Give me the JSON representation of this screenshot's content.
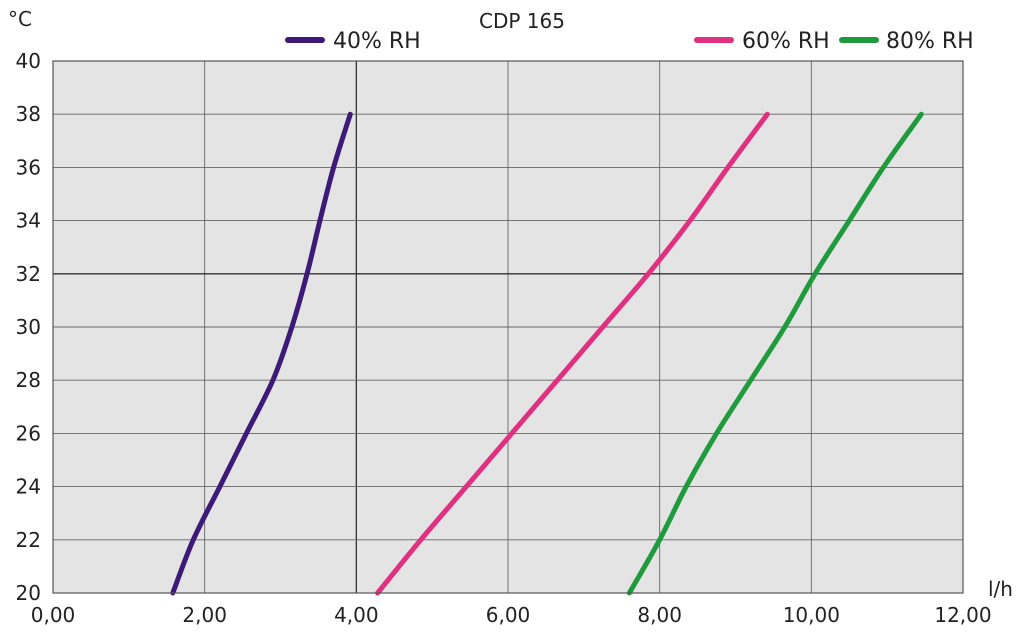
{
  "chart_data": {
    "type": "line",
    "title": "CDP 165",
    "xlabel": "l/h",
    "ylabel": "°C",
    "xlim": [
      0,
      12
    ],
    "ylim": [
      20,
      40
    ],
    "x_ticks": [
      "0,00",
      "2,00",
      "4,00",
      "6,00",
      "8,00",
      "10,00",
      "12,00"
    ],
    "y_ticks": [
      "20",
      "22",
      "24",
      "26",
      "28",
      "30",
      "32",
      "34",
      "36",
      "38",
      "40"
    ],
    "grid": true,
    "legend": "top",
    "series": [
      {
        "name": "40% RH",
        "color": "#3d1a78",
        "points": [
          [
            1.58,
            20
          ],
          [
            1.85,
            22
          ],
          [
            2.2,
            24
          ],
          [
            2.55,
            26
          ],
          [
            2.9,
            28
          ],
          [
            3.15,
            30
          ],
          [
            3.35,
            32
          ],
          [
            3.52,
            34
          ],
          [
            3.7,
            36
          ],
          [
            3.92,
            38
          ]
        ]
      },
      {
        "name": "60% RH",
        "color": "#e0307f",
        "points": [
          [
            4.28,
            20
          ],
          [
            4.85,
            22
          ],
          [
            5.45,
            24
          ],
          [
            6.05,
            26
          ],
          [
            6.65,
            28
          ],
          [
            7.25,
            30
          ],
          [
            7.85,
            32
          ],
          [
            8.4,
            34
          ],
          [
            8.9,
            36
          ],
          [
            9.42,
            38
          ]
        ]
      },
      {
        "name": "80% RH",
        "color": "#1f9a3c",
        "points": [
          [
            7.6,
            20
          ],
          [
            8.0,
            22
          ],
          [
            8.35,
            24
          ],
          [
            8.75,
            26
          ],
          [
            9.2,
            28
          ],
          [
            9.65,
            30
          ],
          [
            10.05,
            32
          ],
          [
            10.5,
            34
          ],
          [
            10.95,
            36
          ],
          [
            11.45,
            38
          ]
        ]
      }
    ]
  }
}
